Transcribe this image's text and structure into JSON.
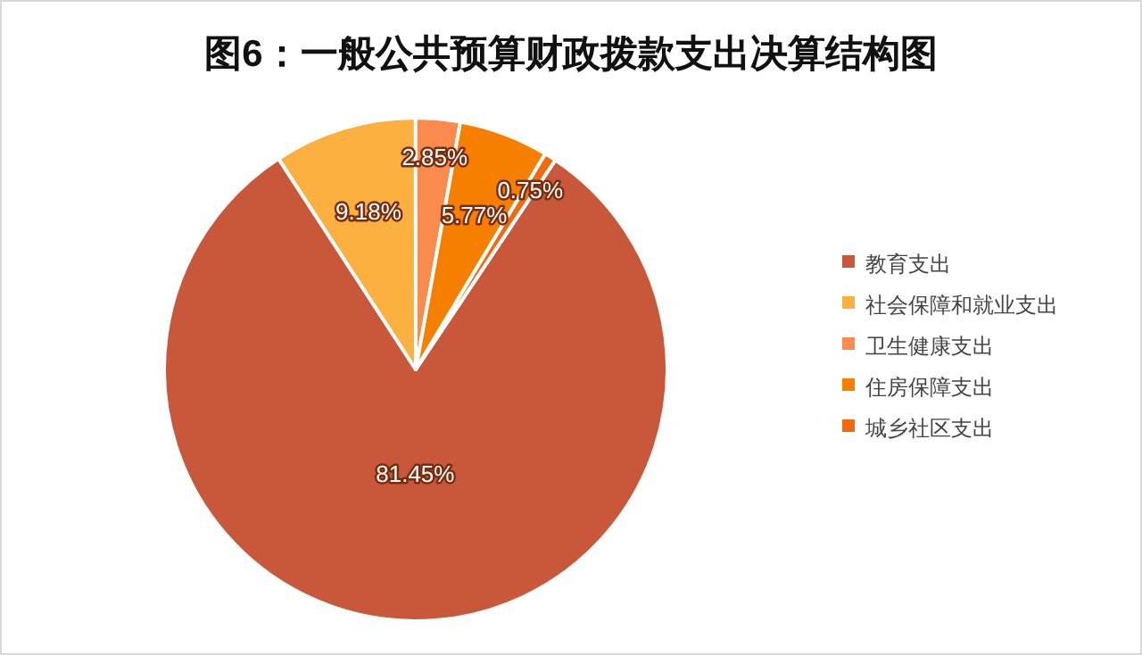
{
  "chart_data": {
    "type": "pie",
    "title": "图6：一般公共预算财政拨款支出决算结构图",
    "categories": [
      "教育支出",
      "社会保障和就业支出",
      "卫生健康支出",
      "住房保障支出",
      "城乡社区支出"
    ],
    "values": [
      81.45,
      9.18,
      2.85,
      5.77,
      0.75
    ],
    "colors": [
      "#c9583a",
      "#fbb040",
      "#f98b4c",
      "#f77f00",
      "#f26a10"
    ],
    "value_labels": [
      "81.45%",
      "9.18%",
      "2.85%",
      "5.77%",
      "0.75%"
    ],
    "legend": "right"
  }
}
